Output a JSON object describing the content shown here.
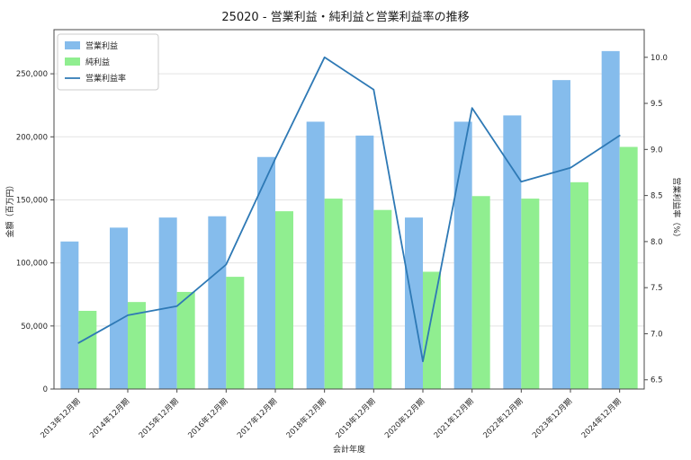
{
  "title": "25020 - 営業利益・純利益と営業利益率の推移",
  "chart_data": {
    "type": "bar",
    "title": "25020 - 営業利益・純利益と営業利益率の推移",
    "categories": [
      "2013年12月期",
      "2014年12月期",
      "2015年12月期",
      "2016年12月期",
      "2017年12月期",
      "2018年12月期",
      "2019年12月期",
      "2020年12月期",
      "2021年12月期",
      "2022年12月期",
      "2023年12月期",
      "2024年12月期"
    ],
    "series": [
      {
        "name": "営業利益",
        "type": "bar",
        "axis": "left",
        "color": "#85BCEC",
        "values": [
          117000,
          128000,
          136000,
          137000,
          184000,
          212000,
          201000,
          136000,
          212000,
          217000,
          245000,
          268000
        ]
      },
      {
        "name": "純利益",
        "type": "bar",
        "axis": "left",
        "color": "#90EE90",
        "values": [
          62000,
          69000,
          77000,
          89000,
          141000,
          151000,
          142000,
          93000,
          153000,
          151000,
          164000,
          192000
        ]
      },
      {
        "name": "営業利益率",
        "type": "line",
        "axis": "right",
        "color": "#2E79B5",
        "values": [
          6.9,
          7.2,
          7.3,
          7.75,
          8.9,
          10.0,
          9.65,
          6.7,
          9.45,
          8.65,
          8.8,
          9.15
        ]
      }
    ],
    "xlabel": "会計年度",
    "ylabel_left": "金額（百万円）",
    "ylabel_right": "営業利益率（%）",
    "ylim_left": [
      0,
      285000
    ],
    "ylim_right": [
      6.4,
      10.3
    ],
    "yticks_left": [
      0,
      50000,
      100000,
      150000,
      200000,
      250000
    ],
    "yticks_right": [
      6.5,
      7.0,
      7.5,
      8.0,
      8.5,
      9.0,
      9.5,
      10.0
    ],
    "grid": true,
    "legend_position": "upper left",
    "colors": {
      "grid": "#e3e3e3",
      "spine": "#4a4a4a",
      "tick_text": "#262626"
    }
  }
}
